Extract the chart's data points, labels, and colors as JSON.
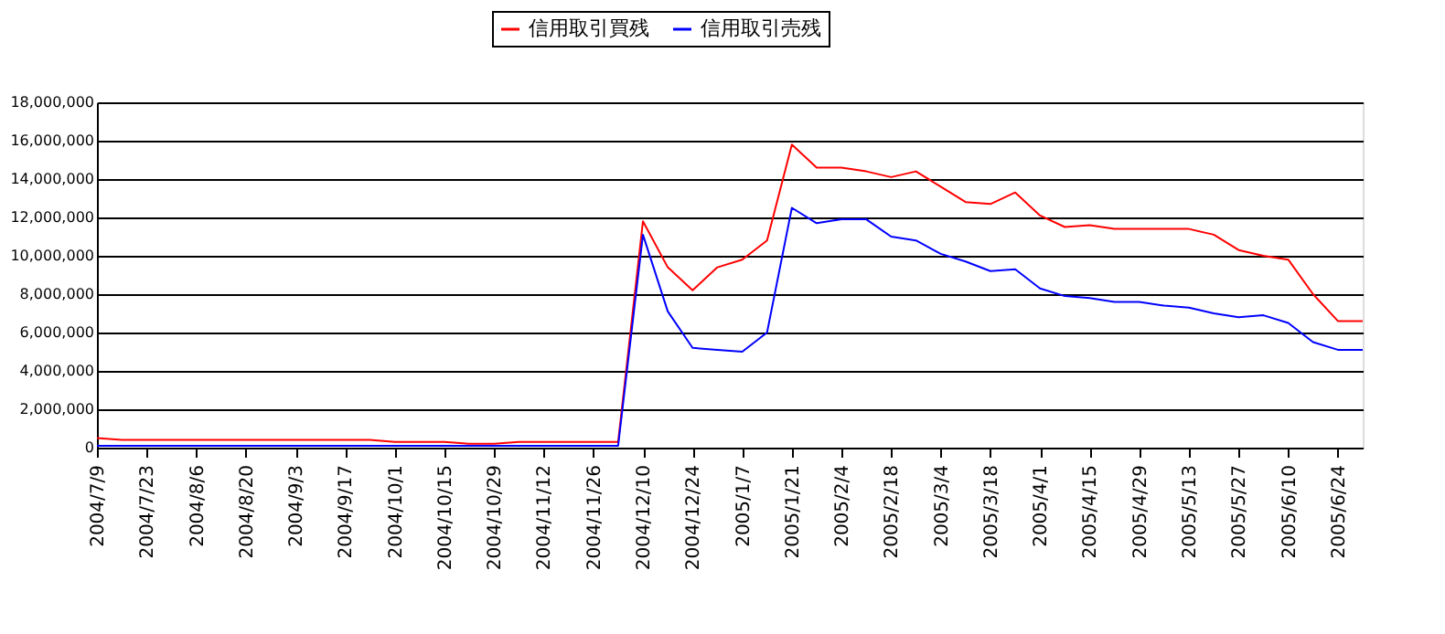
{
  "chart_data": {
    "type": "line",
    "categories": [
      "2004/7/9",
      null,
      "2004/7/23",
      null,
      "2004/8/6",
      null,
      "2004/8/20",
      null,
      "2004/9/3",
      null,
      "2004/9/17",
      null,
      "2004/10/1",
      null,
      "2004/10/15",
      null,
      "2004/10/29",
      null,
      "2004/11/12",
      null,
      "2004/11/26",
      null,
      "2004/12/10",
      null,
      "2004/12/24",
      null,
      "2005/1/7",
      null,
      "2005/1/21",
      null,
      "2005/2/4",
      null,
      "2005/2/18",
      null,
      "2005/3/4",
      null,
      "2005/3/18",
      null,
      "2005/4/1",
      null,
      "2005/4/15",
      null,
      "2005/4/29",
      null,
      "2005/5/13",
      null,
      "2005/5/27",
      null,
      "2005/6/10",
      null,
      "2005/6/24",
      null
    ],
    "series": [
      {
        "name": "信用取引買残",
        "color": "#ff0000",
        "values": [
          500000,
          400000,
          400000,
          400000,
          400000,
          400000,
          400000,
          400000,
          400000,
          400000,
          400000,
          400000,
          300000,
          300000,
          300000,
          200000,
          200000,
          300000,
          300000,
          300000,
          300000,
          300000,
          11800000,
          9400000,
          8200000,
          9400000,
          9800000,
          10800000,
          15800000,
          14600000,
          14600000,
          14400000,
          14100000,
          14400000,
          13600000,
          12800000,
          12700000,
          13300000,
          12100000,
          11500000,
          11600000,
          11400000,
          11400000,
          11400000,
          11400000,
          11100000,
          10300000,
          10000000,
          9800000,
          8000000,
          6600000,
          6600000
        ]
      },
      {
        "name": "信用取引売残",
        "color": "#0000ff",
        "values": [
          100000,
          100000,
          100000,
          100000,
          100000,
          100000,
          100000,
          100000,
          100000,
          100000,
          100000,
          100000,
          100000,
          100000,
          100000,
          100000,
          100000,
          100000,
          100000,
          100000,
          100000,
          100000,
          11100000,
          7100000,
          5200000,
          5100000,
          5000000,
          6000000,
          12500000,
          11700000,
          11900000,
          11900000,
          11000000,
          10800000,
          10100000,
          9700000,
          9200000,
          9300000,
          8300000,
          7900000,
          7800000,
          7600000,
          7600000,
          7400000,
          7300000,
          7000000,
          6800000,
          6900000,
          6500000,
          5500000,
          5100000,
          5100000
        ]
      }
    ],
    "ylim": [
      0,
      18000000
    ],
    "yticks": [
      0,
      {
        "value": 2000000,
        "label": "2,000,000"
      },
      {
        "value": 4000000,
        "label": "4,000,000"
      },
      {
        "value": 6000000,
        "label": "6,000,000"
      },
      {
        "value": 8000000,
        "label": "8,000,000"
      },
      {
        "value": 10000000,
        "label": "10,000,000"
      },
      {
        "value": 12000000,
        "label": "12,000,000"
      },
      {
        "value": 14000000,
        "label": "14,000,000"
      },
      {
        "value": 16000000,
        "label": "16,000,000"
      },
      {
        "value": 18000000,
        "label": "18,000,000"
      }
    ],
    "grid": "y",
    "legend": "top",
    "marker": "none",
    "line_style": "solid"
  }
}
